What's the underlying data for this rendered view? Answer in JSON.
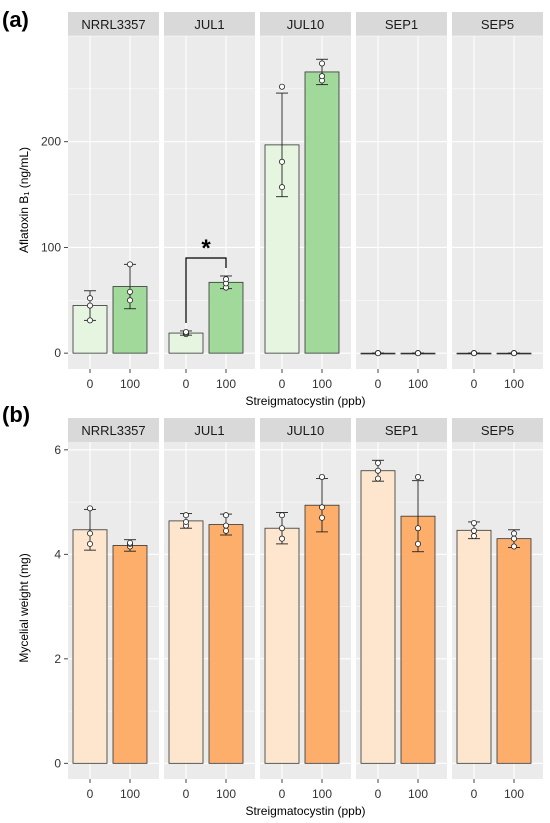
{
  "chart_data": [
    {
      "panel_label": "(a)",
      "type": "bar",
      "facets": [
        "NRRL3357",
        "JUL1",
        "JUL10",
        "SEP1",
        "SEP5"
      ],
      "categories": [
        "0",
        "100"
      ],
      "xlabel": "Streigmatocystin (ppb)",
      "ylabel": "Aflatoxin B₁ (ng/mL)",
      "ylim": [
        -15,
        300
      ],
      "yticks": [
        0,
        100,
        200
      ],
      "colors": [
        "#e5f5e0",
        "#a1d99b"
      ],
      "grid": true,
      "bars": [
        {
          "facet": "NRRL3357",
          "category": "0",
          "value": 45,
          "error": [
            31,
            59
          ],
          "points": [
            31,
            45,
            52
          ]
        },
        {
          "facet": "NRRL3357",
          "category": "100",
          "value": 63,
          "error": [
            42,
            84
          ],
          "points": [
            50,
            58,
            84
          ]
        },
        {
          "facet": "JUL1",
          "category": "0",
          "value": 19,
          "error": [
            17,
            21
          ],
          "points": [
            18,
            19,
            20
          ]
        },
        {
          "facet": "JUL1",
          "category": "100",
          "value": 67,
          "error": [
            61,
            73
          ],
          "points": [
            62,
            66,
            70
          ]
        },
        {
          "facet": "JUL10",
          "category": "0",
          "value": 197,
          "error": [
            148,
            246
          ],
          "points": [
            157,
            181,
            252
          ]
        },
        {
          "facet": "JUL10",
          "category": "100",
          "value": 266,
          "error": [
            254,
            278
          ],
          "points": [
            258,
            262,
            274
          ]
        },
        {
          "facet": "SEP1",
          "category": "0",
          "value": 0,
          "error": [
            0,
            0
          ],
          "points": [
            0,
            0,
            0
          ]
        },
        {
          "facet": "SEP1",
          "category": "100",
          "value": 0,
          "error": [
            0,
            0
          ],
          "points": [
            0,
            0,
            0
          ]
        },
        {
          "facet": "SEP5",
          "category": "0",
          "value": 0,
          "error": [
            0,
            0
          ],
          "points": [
            0,
            0,
            0
          ]
        },
        {
          "facet": "SEP5",
          "category": "100",
          "value": 0,
          "error": [
            0,
            0
          ],
          "points": [
            0,
            0,
            0
          ]
        }
      ],
      "annotations": [
        {
          "facet": "JUL1",
          "text": "*",
          "bracket_y": 90
        }
      ]
    },
    {
      "panel_label": "(b)",
      "type": "bar",
      "facets": [
        "NRRL3357",
        "JUL1",
        "JUL10",
        "SEP1",
        "SEP5"
      ],
      "categories": [
        "0",
        "100"
      ],
      "xlabel": "Streigmatocystin (ppb)",
      "ylabel": "Mycelial weight (mg)",
      "ylim": [
        -0.3,
        6.15
      ],
      "yticks": [
        0,
        2,
        4,
        6
      ],
      "colors": [
        "#fee6ce",
        "#fdae6b"
      ],
      "grid": true,
      "bars": [
        {
          "facet": "NRRL3357",
          "category": "0",
          "value": 4.47,
          "error": [
            4.08,
            4.86
          ],
          "points": [
            4.2,
            4.4,
            4.88
          ]
        },
        {
          "facet": "NRRL3357",
          "category": "100",
          "value": 4.17,
          "error": [
            4.06,
            4.28
          ],
          "points": [
            4.15,
            4.2,
            4.22
          ]
        },
        {
          "facet": "JUL1",
          "category": "0",
          "value": 4.64,
          "error": [
            4.5,
            4.78
          ],
          "points": [
            4.55,
            4.62,
            4.75
          ]
        },
        {
          "facet": "JUL1",
          "category": "100",
          "value": 4.57,
          "error": [
            4.37,
            4.77
          ],
          "points": [
            4.45,
            4.55,
            4.75
          ]
        },
        {
          "facet": "JUL10",
          "category": "0",
          "value": 4.5,
          "error": [
            4.2,
            4.8
          ],
          "points": [
            4.3,
            4.5,
            4.75
          ]
        },
        {
          "facet": "JUL10",
          "category": "100",
          "value": 4.94,
          "error": [
            4.43,
            5.45
          ],
          "points": [
            4.7,
            4.9,
            5.48
          ]
        },
        {
          "facet": "SEP1",
          "category": "0",
          "value": 5.6,
          "error": [
            5.4,
            5.8
          ],
          "points": [
            5.45,
            5.6,
            5.75
          ]
        },
        {
          "facet": "SEP1",
          "category": "100",
          "value": 4.73,
          "error": [
            4.05,
            5.41
          ],
          "points": [
            4.2,
            4.5,
            5.48
          ]
        },
        {
          "facet": "SEP5",
          "category": "0",
          "value": 4.46,
          "error": [
            4.3,
            4.62
          ],
          "points": [
            4.35,
            4.45,
            4.6
          ]
        },
        {
          "facet": "SEP5",
          "category": "100",
          "value": 4.3,
          "error": [
            4.13,
            4.47
          ],
          "points": [
            4.15,
            4.3,
            4.4
          ]
        }
      ],
      "annotations": []
    }
  ]
}
